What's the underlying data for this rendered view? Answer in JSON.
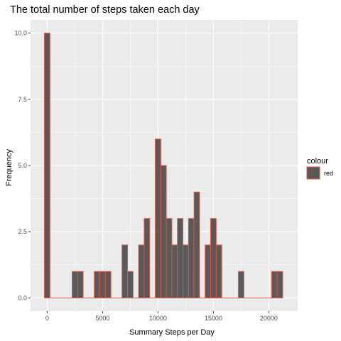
{
  "chart_data": {
    "type": "bar",
    "title": "The total number of steps taken each day",
    "xlabel": "Summary Steps per Day",
    "ylabel": "Frequency",
    "binwidth": 500,
    "xlim": [
      -1500,
      22600
    ],
    "ylim": [
      -0.5,
      10.5
    ],
    "x_ticks": [
      0,
      5000,
      10000,
      15000,
      20000
    ],
    "x_tick_labels": [
      "0",
      "5000",
      "10000",
      "15000",
      "20000"
    ],
    "y_ticks": [
      0,
      2.5,
      5,
      7.5,
      10
    ],
    "y_tick_labels": [
      "0.0",
      "2.5",
      "5.0",
      "7.5",
      "10.0"
    ],
    "bins": [
      {
        "x": 0,
        "count": 10
      },
      {
        "x": 2500,
        "count": 1
      },
      {
        "x": 3000,
        "count": 1
      },
      {
        "x": 4500,
        "count": 1
      },
      {
        "x": 5000,
        "count": 1
      },
      {
        "x": 5500,
        "count": 1
      },
      {
        "x": 7000,
        "count": 2
      },
      {
        "x": 7500,
        "count": 1
      },
      {
        "x": 8500,
        "count": 2
      },
      {
        "x": 9000,
        "count": 3
      },
      {
        "x": 10000,
        "count": 6
      },
      {
        "x": 10500,
        "count": 5
      },
      {
        "x": 11000,
        "count": 3
      },
      {
        "x": 11500,
        "count": 2
      },
      {
        "x": 12000,
        "count": 3
      },
      {
        "x": 12500,
        "count": 2
      },
      {
        "x": 13000,
        "count": 3
      },
      {
        "x": 13500,
        "count": 4
      },
      {
        "x": 14500,
        "count": 2
      },
      {
        "x": 15000,
        "count": 3
      },
      {
        "x": 15500,
        "count": 2
      },
      {
        "x": 17500,
        "count": 1
      },
      {
        "x": 20500,
        "count": 1
      },
      {
        "x": 21000,
        "count": 1
      }
    ],
    "fill_color": "#595959",
    "outline_color": "#E8533F",
    "panel_background": "#EBEBEB",
    "grid": true,
    "legend": {
      "title": "colour",
      "items": [
        {
          "label": "red",
          "fill": "#595959",
          "outline": "#E8533F"
        }
      ],
      "placement": "right"
    }
  }
}
